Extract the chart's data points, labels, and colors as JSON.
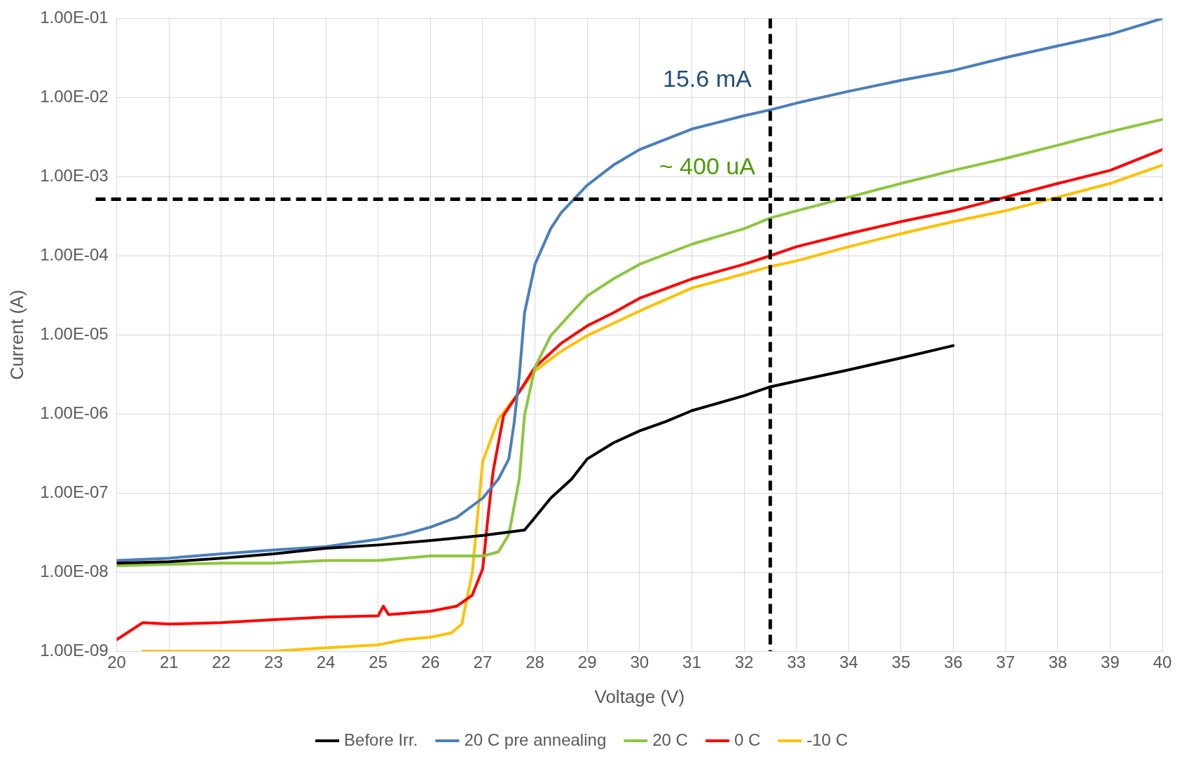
{
  "chart_data": {
    "type": "line",
    "xlabel": "Voltage (V)",
    "ylabel": "Current (A)",
    "log": "y",
    "grid": true,
    "legend": "bottom",
    "marker": "none",
    "line_style": "solid",
    "xlim": [
      20,
      40
    ],
    "xticks": [
      20,
      21,
      22,
      23,
      24,
      25,
      26,
      27,
      28,
      29,
      30,
      31,
      32,
      33,
      34,
      35,
      36,
      37,
      38,
      39,
      40
    ],
    "ylim": [
      1e-09,
      0.1
    ],
    "yticks": [
      {
        "value": 1e-09,
        "label": "1.00E-09"
      },
      {
        "value": 1e-08,
        "label": "1.00E-08"
      },
      {
        "value": 1e-07,
        "label": "1.00E-07"
      },
      {
        "value": 1e-06,
        "label": "1.00E-06"
      },
      {
        "value": 1e-05,
        "label": "1.00E-05"
      },
      {
        "value": 0.0001,
        "label": "1.00E-04"
      },
      {
        "value": 0.001,
        "label": "1.00E-03"
      },
      {
        "value": 0.01,
        "label": "1.00E-02"
      },
      {
        "value": 0.1,
        "label": "1.00E-01"
      }
    ],
    "series": [
      {
        "name": "Before Irr.",
        "color": "#000000",
        "x": [
          20,
          21,
          22,
          23,
          24,
          25,
          26,
          27,
          27.8,
          28,
          28.3,
          28.7,
          29,
          29.5,
          30,
          30.5,
          31,
          32,
          32.5,
          33,
          34,
          35,
          36
        ],
        "values": [
          1.3e-08,
          1.35e-08,
          1.5e-08,
          1.7e-08,
          2e-08,
          2.2e-08,
          2.5e-08,
          2.9e-08,
          3.4e-08,
          4.9e-08,
          8.6e-08,
          1.5e-07,
          2.7e-07,
          4.3e-07,
          6.1e-07,
          8e-07,
          1.1e-06,
          1.7e-06,
          2.2e-06,
          2.6e-06,
          3.6e-06,
          5.1e-06,
          7.3e-06
        ]
      },
      {
        "name": "20 C pre annealing",
        "color": "#4a7ebb",
        "x": [
          20,
          21,
          22,
          23,
          24,
          25,
          25.5,
          26,
          26.5,
          27,
          27.3,
          27.5,
          27.6,
          27.7,
          27.8,
          28,
          28.3,
          28.5,
          29,
          29.5,
          30,
          31,
          32,
          32.5,
          33,
          34,
          35,
          36,
          37,
          38,
          39,
          40
        ],
        "values": [
          1.4e-08,
          1.5e-08,
          1.7e-08,
          1.9e-08,
          2.1e-08,
          2.6e-08,
          3e-08,
          3.7e-08,
          4.9e-08,
          8.6e-08,
          1.5e-07,
          2.7e-07,
          7.6e-07,
          3e-06,
          1.9e-05,
          7.8e-05,
          0.00022,
          0.00035,
          0.00078,
          0.0014,
          0.0022,
          0.004,
          0.0059,
          0.007,
          0.0085,
          0.012,
          0.0165,
          0.022,
          0.032,
          0.045,
          0.063,
          0.1
        ]
      },
      {
        "name": "20 C",
        "color": "#8cc63f",
        "x": [
          20,
          21,
          22,
          23,
          24,
          25,
          26,
          27,
          27.3,
          27.5,
          27.7,
          27.8,
          28,
          28.3,
          28.7,
          29,
          29.5,
          30,
          31,
          32,
          32.5,
          33,
          34,
          35,
          36,
          37,
          38,
          39,
          40
        ],
        "values": [
          1.2e-08,
          1.25e-08,
          1.3e-08,
          1.3e-08,
          1.4e-08,
          1.4e-08,
          1.6e-08,
          1.6e-08,
          1.8e-08,
          3e-08,
          1.5e-07,
          9.6e-07,
          3.9e-06,
          9.7e-06,
          1.9e-05,
          3.1e-05,
          5.1e-05,
          7.8e-05,
          0.00014,
          0.00022,
          0.0003,
          0.00037,
          0.00055,
          0.00082,
          0.0012,
          0.0017,
          0.0025,
          0.0037,
          0.0053
        ]
      },
      {
        "name": "0 C",
        "color": "#ff0000",
        "x": [
          20,
          20.5,
          21,
          22,
          23,
          24,
          25,
          25.1,
          25.2,
          26,
          26.5,
          26.8,
          27,
          27.1,
          27.2,
          27.4,
          27.7,
          28,
          28.5,
          29,
          29.5,
          30,
          31,
          32,
          32.5,
          33,
          34,
          35,
          36,
          37,
          38,
          39,
          40
        ],
        "values": [
          1.4e-09,
          2.3e-09,
          2.2e-09,
          2.3e-09,
          2.5e-09,
          2.7e-09,
          2.8e-09,
          3.7e-09,
          2.9e-09,
          3.2e-09,
          3.7e-09,
          5.1e-09,
          1.1e-08,
          4.9e-08,
          1.9e-07,
          9.6e-07,
          1.9e-06,
          3.9e-06,
          7.8e-06,
          1.3e-05,
          1.9e-05,
          2.9e-05,
          5.1e-05,
          7.8e-05,
          0.0001,
          0.00013,
          0.00019,
          0.00027,
          0.00037,
          0.00055,
          0.00082,
          0.0012,
          0.0022
        ]
      },
      {
        "name": "-10 C",
        "color": "#ffc000",
        "x": [
          20.5,
          22,
          23,
          24,
          25,
          25.5,
          26,
          26.4,
          26.6,
          26.8,
          26.9,
          27,
          27.3,
          27.7,
          28,
          28.5,
          29,
          29.5,
          30,
          31,
          32,
          32.5,
          33,
          34,
          35,
          36,
          37,
          38,
          39,
          40
        ],
        "values": [
          1e-09,
          1e-09,
          1e-09,
          1.1e-09,
          1.2e-09,
          1.4e-09,
          1.5e-09,
          1.7e-09,
          2.2e-09,
          9.8e-09,
          4.9e-08,
          2.5e-07,
          8.6e-07,
          1.9e-06,
          3.5e-06,
          6.2e-06,
          9.8e-06,
          1.4e-05,
          2e-05,
          3.9e-05,
          5.9e-05,
          7.3e-05,
          8.6e-05,
          0.00013,
          0.00019,
          0.00027,
          0.00037,
          0.00055,
          0.00082,
          0.0014
        ]
      }
    ],
    "ref_lines": [
      {
        "axis": "y",
        "value": 0.00052,
        "color": "#000000",
        "line_style": "dashed"
      },
      {
        "axis": "x",
        "value": 32.5,
        "color": "#000000",
        "line_style": "dashed"
      }
    ],
    "annotations": [
      "15.6 mA",
      "~ 400 uA"
    ]
  }
}
